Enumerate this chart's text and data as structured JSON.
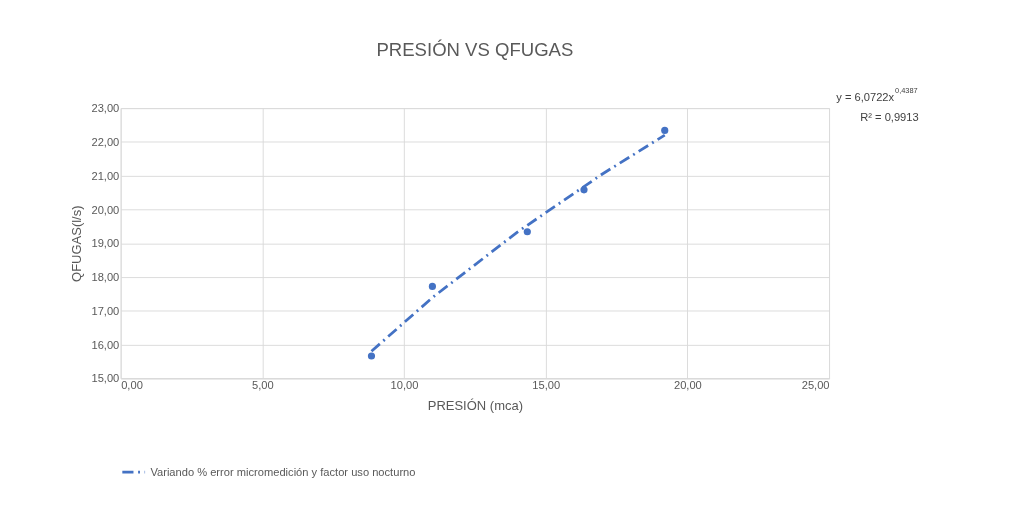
{
  "chart_data": {
    "type": "scatter",
    "title": "PRESIÓN VS QFUGAS",
    "xlabel": "PRESIÓN (mca)",
    "ylabel": "QFUGAS(l/s)",
    "x": [
      8.85,
      11.0,
      14.35,
      16.35,
      19.2
    ],
    "series": [
      {
        "color": "#4472c4",
        "marker": "circle",
        "values": [
          15.66,
          17.72,
          19.34,
          20.58,
          22.34
        ]
      },
      {
        "type": "line",
        "name": "Variando % error micromedición y factor uso nocturno",
        "color": "#4472c4",
        "line_style": "dashed",
        "marker": "none",
        "x": [
          8.85,
          11.0,
          14.0,
          17.0,
          19.2
        ],
        "values": [
          15.8,
          17.39,
          19.33,
          21.05,
          22.2
        ]
      }
    ],
    "xlim": [
      0,
      25
    ],
    "ylim": [
      15,
      23
    ],
    "xticks": [
      {
        "value": 0,
        "label": "0,00"
      },
      {
        "value": 5,
        "label": "5,00"
      },
      {
        "value": 10,
        "label": "10,00"
      },
      {
        "value": 15,
        "label": "15,00"
      },
      {
        "value": 20,
        "label": "20,00"
      },
      {
        "value": 25,
        "label": "25,00"
      }
    ],
    "yticks": [
      {
        "value": 15,
        "label": "15,00"
      },
      {
        "value": 16,
        "label": "16,00"
      },
      {
        "value": 17,
        "label": "17,00"
      },
      {
        "value": 18,
        "label": "18,00"
      },
      {
        "value": 19,
        "label": "19,00"
      },
      {
        "value": 20,
        "label": "20,00"
      },
      {
        "value": 21,
        "label": "21,00"
      },
      {
        "value": 22,
        "label": "22,00"
      },
      {
        "value": 23,
        "label": "23,00"
      }
    ],
    "annotations": [
      "y = 6,0722x$^{0,4387}$",
      "R² = 0,9913"
    ],
    "grid": true,
    "legend": "bottom"
  }
}
